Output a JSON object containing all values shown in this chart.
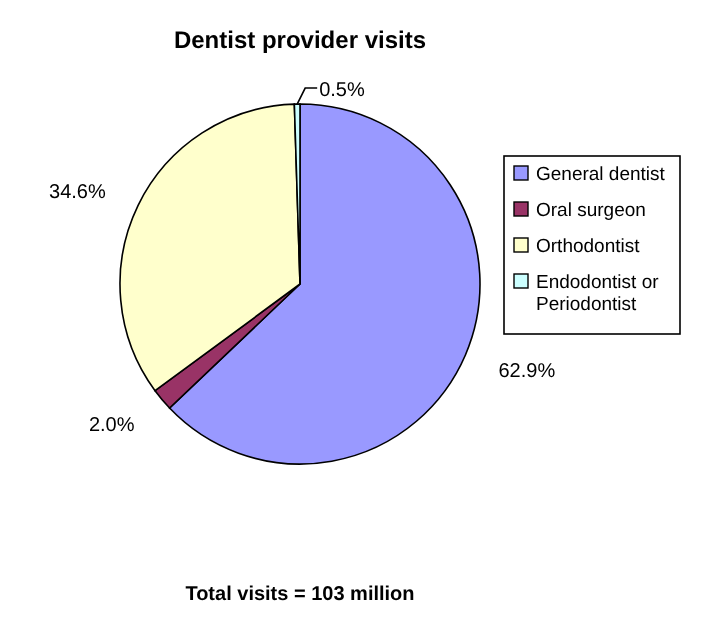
{
  "chart_data": {
    "type": "pie",
    "title": "Dentist provider visits",
    "categories": [
      "General dentist",
      "Oral surgeon",
      "Orthodontist",
      "Endodontist or Periodontist"
    ],
    "values": [
      62.9,
      2.0,
      34.6,
      0.5
    ],
    "colors": [
      "#9999ff",
      "#993366",
      "#ffffcc",
      "#ccffff"
    ],
    "value_labels": [
      "62.9%",
      "2.0%",
      "34.6%",
      "0.5%"
    ],
    "legend": "right",
    "annotations": [
      "Total visits = 103 million"
    ]
  }
}
